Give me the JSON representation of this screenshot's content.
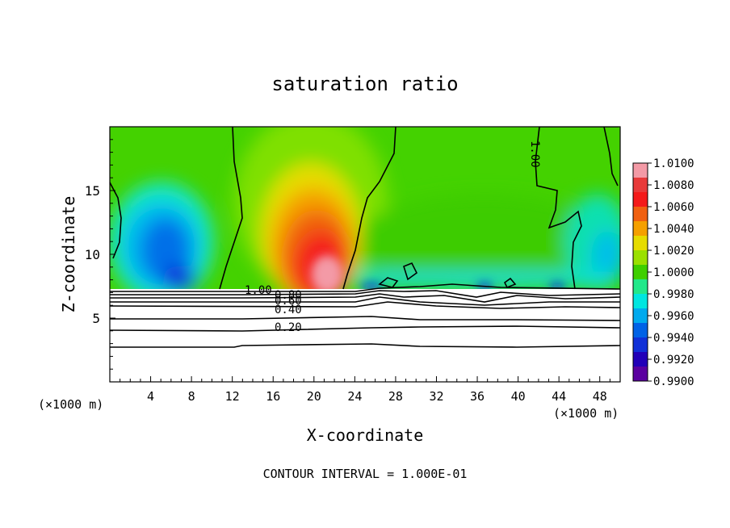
{
  "chart_data": {
    "type": "heatmap",
    "title": "saturation ratio",
    "xlabel": "X-coordinate",
    "ylabel": "Z-coordinate",
    "x_unit_label": "(×1000 m)",
    "y_unit_label": "(×1000 m)",
    "xlim": [
      0,
      50
    ],
    "ylim": [
      0,
      20
    ],
    "x_ticks": [
      4,
      8,
      12,
      16,
      20,
      24,
      28,
      32,
      36,
      40,
      44,
      48
    ],
    "y_ticks": [
      5,
      10,
      15
    ],
    "footer": "CONTOUR INTERVAL = 1.000E-01",
    "colorbar": {
      "levels": [
        "1.0100",
        "1.0080",
        "1.0060",
        "1.0040",
        "1.0020",
        "1.0000",
        "0.9980",
        "0.9960",
        "0.9940",
        "0.9920",
        "0.9900"
      ],
      "colors": [
        "#f39aa6",
        "#e83a3a",
        "#f41a1a",
        "#f06010",
        "#f5a000",
        "#e6dc00",
        "#9be000",
        "#3fcf00",
        "#22e88a",
        "#00e6e0",
        "#00aaee",
        "#0062e6",
        "#1030d8",
        "#2200b8",
        "#5a00a0"
      ]
    },
    "contour_labels": [
      {
        "text": "1.00",
        "x": 15.0,
        "z": 7.3
      },
      {
        "text": "0.80",
        "x": 17.5,
        "z": 6.8
      },
      {
        "text": "0.60",
        "x": 17.5,
        "z": 6.3
      },
      {
        "text": "0.40",
        "x": 17.5,
        "z": 5.6
      },
      {
        "text": "0.20",
        "x": 17.5,
        "z": 4.3
      },
      {
        "text": "1.00",
        "x": 41.5,
        "z": 18.0
      }
    ]
  }
}
